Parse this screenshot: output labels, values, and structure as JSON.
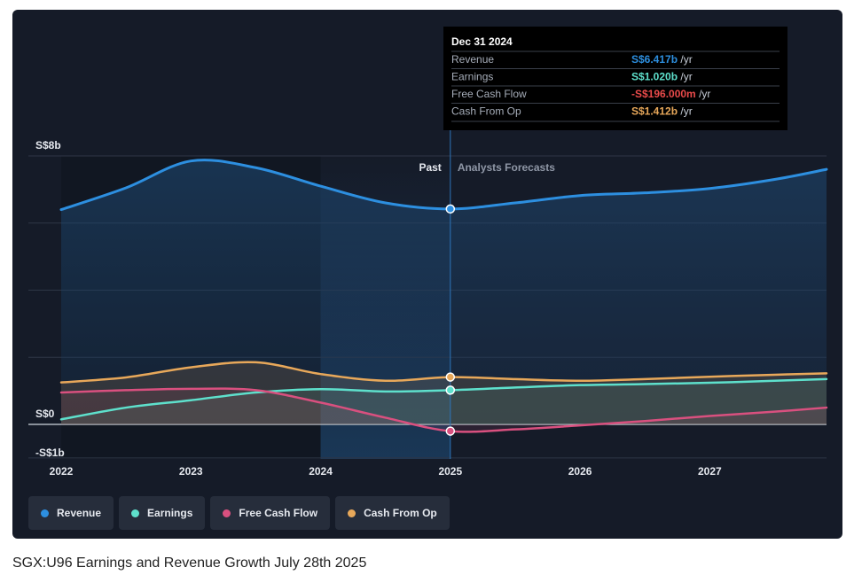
{
  "caption": "SGX:U96 Earnings and Revenue Growth July 28th 2025",
  "chart_data": {
    "type": "area",
    "x_ticks": [
      2022,
      2023,
      2024,
      2025,
      2026,
      2027
    ],
    "y_tick_labels": [
      {
        "value": 8,
        "label": "S$8b"
      },
      {
        "value": 0,
        "label": "S$0"
      },
      {
        "value": -1,
        "label": "-S$1b"
      }
    ],
    "ylim": [
      -1.0,
      8.0
    ],
    "xlim": [
      2022,
      2027.9
    ],
    "divider_x": 2025,
    "highlight_range": [
      2024,
      2025
    ],
    "past_label": "Past",
    "forecast_label": "Analysts Forecasts",
    "series": [
      {
        "name": "Revenue",
        "color": "#2d8fe0",
        "points": [
          [
            2022.0,
            6.4
          ],
          [
            2022.5,
            7.05
          ],
          [
            2023.0,
            7.85
          ],
          [
            2023.5,
            7.65
          ],
          [
            2024.0,
            7.1
          ],
          [
            2024.5,
            6.6
          ],
          [
            2025.0,
            6.42
          ],
          [
            2025.5,
            6.6
          ],
          [
            2026.0,
            6.82
          ],
          [
            2026.5,
            6.9
          ],
          [
            2027.0,
            7.03
          ],
          [
            2027.5,
            7.3
          ],
          [
            2027.9,
            7.6
          ]
        ]
      },
      {
        "name": "Earnings",
        "color": "#5ee0cc",
        "points": [
          [
            2022.0,
            0.15
          ],
          [
            2022.5,
            0.5
          ],
          [
            2023.0,
            0.72
          ],
          [
            2023.5,
            0.95
          ],
          [
            2024.0,
            1.05
          ],
          [
            2024.5,
            0.98
          ],
          [
            2025.0,
            1.02
          ],
          [
            2025.5,
            1.1
          ],
          [
            2026.0,
            1.17
          ],
          [
            2026.5,
            1.2
          ],
          [
            2027.0,
            1.24
          ],
          [
            2027.5,
            1.3
          ],
          [
            2027.9,
            1.35
          ]
        ]
      },
      {
        "name": "Free Cash Flow",
        "color": "#d9507f",
        "points": [
          [
            2022.0,
            0.95
          ],
          [
            2022.5,
            1.02
          ],
          [
            2023.0,
            1.06
          ],
          [
            2023.5,
            1.02
          ],
          [
            2024.0,
            0.65
          ],
          [
            2024.5,
            0.2
          ],
          [
            2025.0,
            -0.2
          ],
          [
            2025.5,
            -0.15
          ],
          [
            2026.0,
            -0.03
          ],
          [
            2026.5,
            0.1
          ],
          [
            2027.0,
            0.25
          ],
          [
            2027.5,
            0.38
          ],
          [
            2027.9,
            0.5
          ]
        ]
      },
      {
        "name": "Cash From Op",
        "color": "#e8a85a",
        "points": [
          [
            2022.0,
            1.25
          ],
          [
            2022.5,
            1.4
          ],
          [
            2023.0,
            1.7
          ],
          [
            2023.5,
            1.85
          ],
          [
            2024.0,
            1.5
          ],
          [
            2024.5,
            1.3
          ],
          [
            2025.0,
            1.41
          ],
          [
            2025.5,
            1.35
          ],
          [
            2026.0,
            1.3
          ],
          [
            2026.5,
            1.35
          ],
          [
            2027.0,
            1.42
          ],
          [
            2027.5,
            1.48
          ],
          [
            2027.9,
            1.52
          ]
        ]
      }
    ]
  },
  "tooltip": {
    "date": "Dec 31 2024",
    "rows": [
      {
        "label": "Revenue",
        "value": "S$6.417b",
        "unit": "/yr",
        "color": "#2d8fe0"
      },
      {
        "label": "Earnings",
        "value": "S$1.020b",
        "unit": "/yr",
        "color": "#5ee0cc"
      },
      {
        "label": "Free Cash Flow",
        "value": "-S$196.000m",
        "unit": "/yr",
        "color": "#e84a4a"
      },
      {
        "label": "Cash From Op",
        "value": "S$1.412b",
        "unit": "/yr",
        "color": "#e8a85a"
      }
    ]
  },
  "legend": [
    {
      "label": "Revenue",
      "color": "#2d8fe0"
    },
    {
      "label": "Earnings",
      "color": "#5ee0cc"
    },
    {
      "label": "Free Cash Flow",
      "color": "#d9507f"
    },
    {
      "label": "Cash From Op",
      "color": "#e8a85a"
    }
  ]
}
